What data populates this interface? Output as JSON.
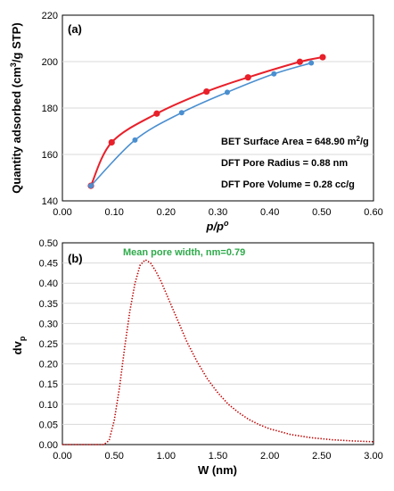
{
  "chart_data": [
    {
      "type": "line",
      "panel_label": "(a)",
      "xlabel": "p/pº",
      "ylabel": "Quantity adsorbed (cm³/g STP)",
      "xlim": [
        0.0,
        0.6
      ],
      "ylim": [
        140,
        220
      ],
      "x_ticks": [
        "0.00",
        "0.10",
        "0.20",
        "0.30",
        "0.40",
        "0.50",
        "0.60"
      ],
      "y_ticks": [
        "140",
        "160",
        "180",
        "200",
        "220"
      ],
      "grid": "horizontal",
      "series": [
        {
          "color": "#e8202a",
          "x": [
            0.055,
            0.095,
            0.182,
            0.278,
            0.358,
            0.458,
            0.502
          ],
          "y": [
            146.5,
            165.2,
            177.6,
            187.1,
            193.2,
            199.9,
            201.9
          ]
        },
        {
          "color": "#4a8fd0",
          "x": [
            0.055,
            0.14,
            0.23,
            0.318,
            0.408,
            0.48
          ],
          "y": [
            146.5,
            166.2,
            178.0,
            186.8,
            194.7,
            199.4
          ]
        }
      ],
      "annotations": [
        "BET Surface Area  =  648.90  m²/g",
        "DFT Pore Radius  =  0.88 nm",
        "DFT Pore Volume  = 0.28 cc/g"
      ]
    },
    {
      "type": "line",
      "panel_label": "(b)",
      "xlabel": "W (nm)",
      "ylabel": "dv_p",
      "xlim": [
        0.0,
        3.0
      ],
      "ylim": [
        0.0,
        0.5
      ],
      "x_ticks": [
        "0.00",
        "0.50",
        "1.00",
        "1.50",
        "2.00",
        "2.50",
        "3.00"
      ],
      "y_ticks": [
        "0.00",
        "0.05",
        "0.10",
        "0.15",
        "0.20",
        "0.25",
        "0.30",
        "0.35",
        "0.40",
        "0.45",
        "0.50"
      ],
      "grid": "horizontal",
      "series": [
        {
          "color": "#c00000",
          "line_style": "dotted",
          "x": [
            0.0,
            0.4,
            0.45,
            0.5,
            0.55,
            0.6,
            0.65,
            0.7,
            0.75,
            0.8,
            0.85,
            0.9,
            0.95,
            1.0,
            1.1,
            1.2,
            1.3,
            1.4,
            1.5,
            1.6,
            1.7,
            1.8,
            1.9,
            2.0,
            2.2,
            2.4,
            2.6,
            2.8,
            3.0
          ],
          "y": [
            0.0,
            0.0,
            0.01,
            0.06,
            0.14,
            0.24,
            0.33,
            0.4,
            0.445,
            0.458,
            0.45,
            0.43,
            0.405,
            0.375,
            0.315,
            0.255,
            0.205,
            0.162,
            0.128,
            0.1,
            0.079,
            0.062,
            0.049,
            0.039,
            0.025,
            0.017,
            0.012,
            0.009,
            0.007
          ]
        }
      ],
      "annotations": [
        "Mean pore width, nm=0.79"
      ]
    }
  ]
}
